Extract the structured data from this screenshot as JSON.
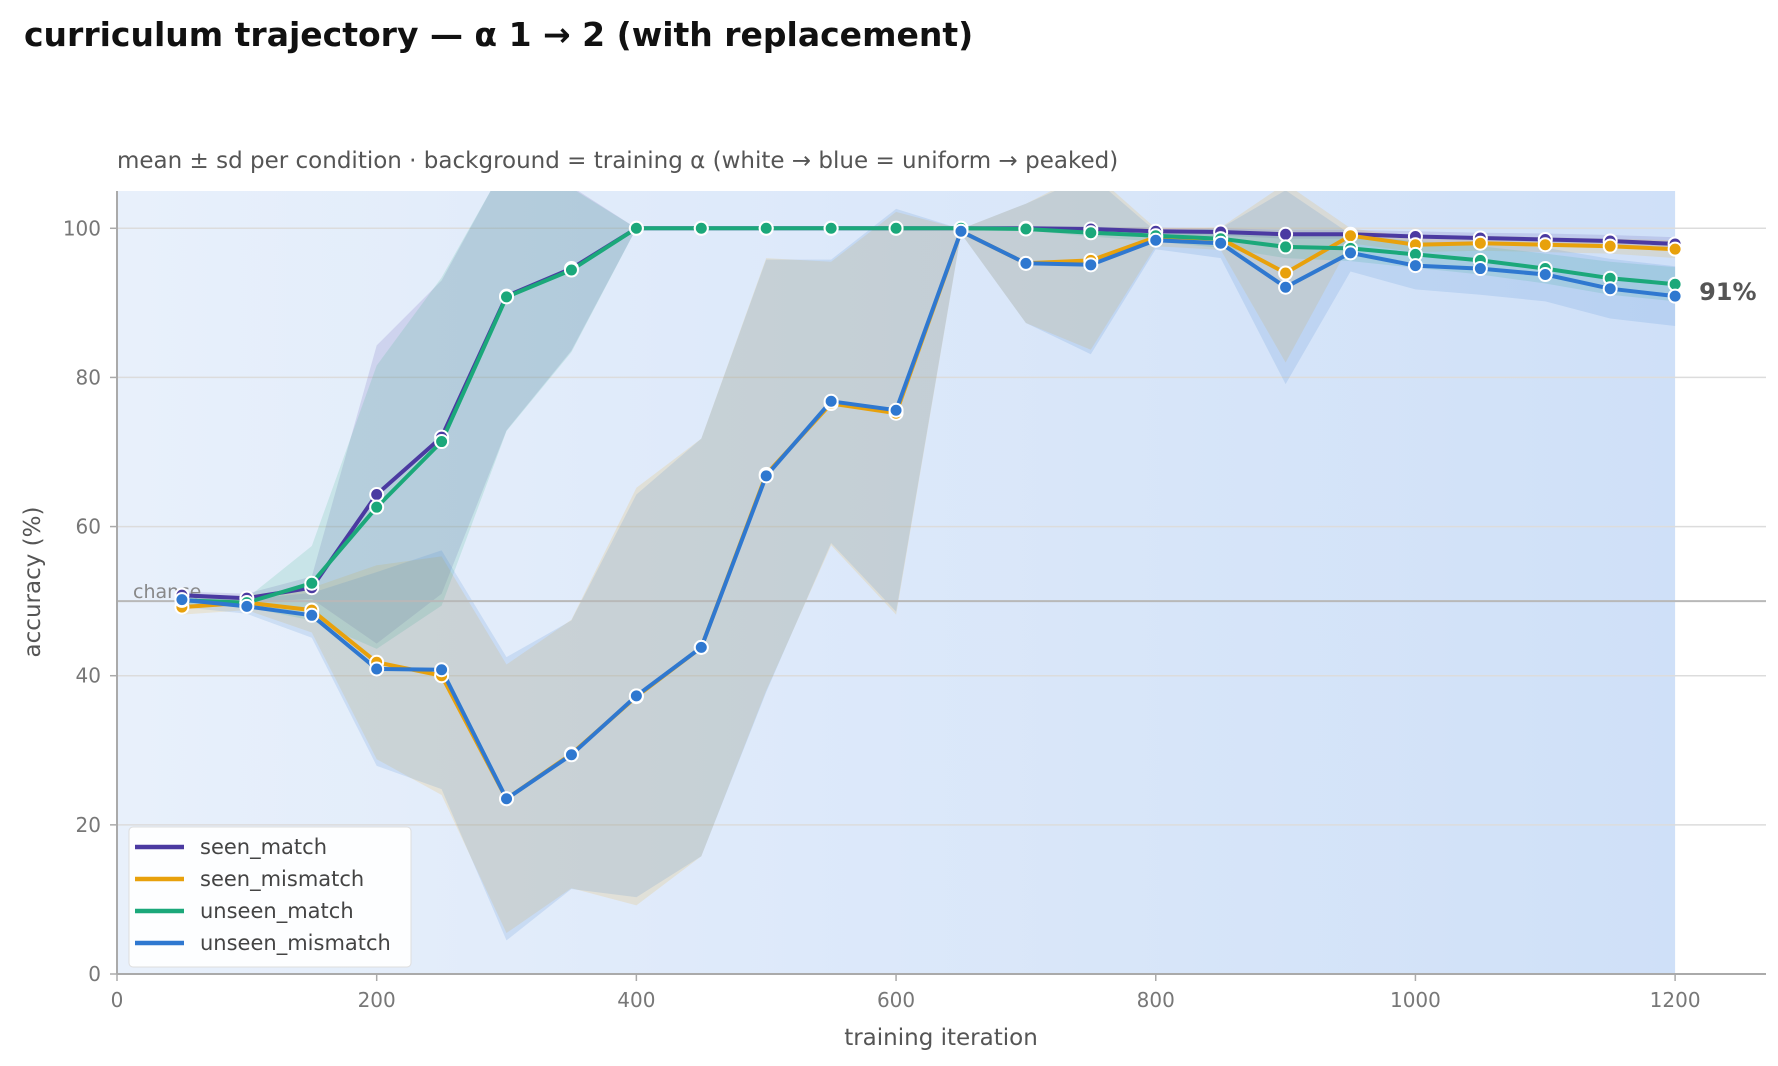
{
  "chart_data": {
    "type": "line",
    "title": "curriculum trajectory — α 1 → 2 (with replacement)",
    "subtitle": "mean ± sd per condition · background = training α (white → blue = uniform → peaked)",
    "xlabel": "training iteration",
    "ylabel": "accuracy (%)",
    "xlim": [
      0,
      1270
    ],
    "ylim": [
      0,
      105
    ],
    "xticks": [
      0,
      200,
      400,
      600,
      800,
      1000,
      1200
    ],
    "yticks": [
      0,
      20,
      40,
      60,
      80,
      100
    ],
    "grid": "horizontal",
    "legend_position": "bottom-left",
    "chance": {
      "value": 50,
      "label": "chance"
    },
    "end_label": {
      "text": "91%",
      "series": "unseen_mismatch"
    },
    "background_gradient": {
      "x_range": [
        0,
        1200
      ],
      "from_color": "#e8f0fb",
      "to_color": "#cfe0f8"
    },
    "x": [
      50,
      100,
      150,
      200,
      250,
      300,
      350,
      400,
      450,
      500,
      550,
      600,
      650,
      700,
      750,
      800,
      850,
      900,
      950,
      1000,
      1050,
      1100,
      1150,
      1200
    ],
    "series": [
      {
        "name": "seen_match",
        "color": "#4b3aa1",
        "mean": [
          50.8,
          50.4,
          51.8,
          64.3,
          72.0,
          90.9,
          94.6,
          100,
          100,
          100,
          100,
          100,
          100,
          100,
          99.9,
          99.6,
          99.5,
          99.2,
          99.2,
          98.9,
          98.7,
          98.5,
          98.3,
          97.9
        ],
        "sd": [
          0.5,
          0.6,
          1.5,
          20.0,
          21.0,
          18.0,
          11.0,
          0,
          0,
          0,
          0,
          0,
          0,
          0.2,
          0.3,
          0.5,
          0.5,
          0.6,
          0.6,
          0.7,
          0.7,
          0.8,
          0.8,
          0.9
        ]
      },
      {
        "name": "seen_mismatch",
        "color": "#e8a10c",
        "mean": [
          49.2,
          49.8,
          48.8,
          41.8,
          40.0,
          23.5,
          29.5,
          37.2,
          43.8,
          67.0,
          76.5,
          75.2,
          99.6,
          95.3,
          95.7,
          98.8,
          98.6,
          94.0,
          99.0,
          97.8,
          98.0,
          97.8,
          97.6,
          97.2
        ],
        "sd": [
          1.0,
          1.0,
          3.0,
          13.0,
          16.0,
          18.0,
          18.0,
          28.0,
          28.0,
          29.0,
          19.0,
          27.0,
          0.3,
          8.0,
          12.0,
          1.2,
          1.5,
          12.0,
          1.0,
          1.0,
          1.0,
          1.0,
          1.0,
          1.2
        ]
      },
      {
        "name": "unseen_match",
        "color": "#1ba87a",
        "mean": [
          50.1,
          49.8,
          52.4,
          62.6,
          71.4,
          90.8,
          94.4,
          100,
          100,
          100,
          100,
          100,
          100,
          99.9,
          99.4,
          99.0,
          98.6,
          97.5,
          97.3,
          96.5,
          95.7,
          94.6,
          93.3,
          92.5
        ],
        "sd": [
          0.5,
          0.6,
          5.0,
          19.0,
          22.0,
          18.0,
          11.0,
          0,
          0,
          0,
          0,
          0,
          0,
          0.2,
          0.5,
          0.8,
          1.2,
          1.5,
          1.7,
          1.8,
          1.9,
          2.0,
          2.2,
          2.3
        ]
      },
      {
        "name": "unseen_mismatch",
        "color": "#2f78d0",
        "mean": [
          50.2,
          49.3,
          48.1,
          40.9,
          40.8,
          23.5,
          29.4,
          37.3,
          43.8,
          66.8,
          76.8,
          75.6,
          99.6,
          95.3,
          95.1,
          98.4,
          98.0,
          92.1,
          96.7,
          95.0,
          94.6,
          93.8,
          91.9,
          90.9
        ],
        "sd": [
          1.0,
          1.0,
          3.0,
          13.0,
          16.0,
          19.0,
          18.0,
          27.0,
          28.0,
          29.0,
          19.0,
          27.0,
          0.3,
          8.0,
          12.0,
          1.2,
          2.0,
          13.0,
          2.5,
          3.2,
          3.5,
          3.6,
          4.0,
          4.0
        ]
      }
    ]
  }
}
